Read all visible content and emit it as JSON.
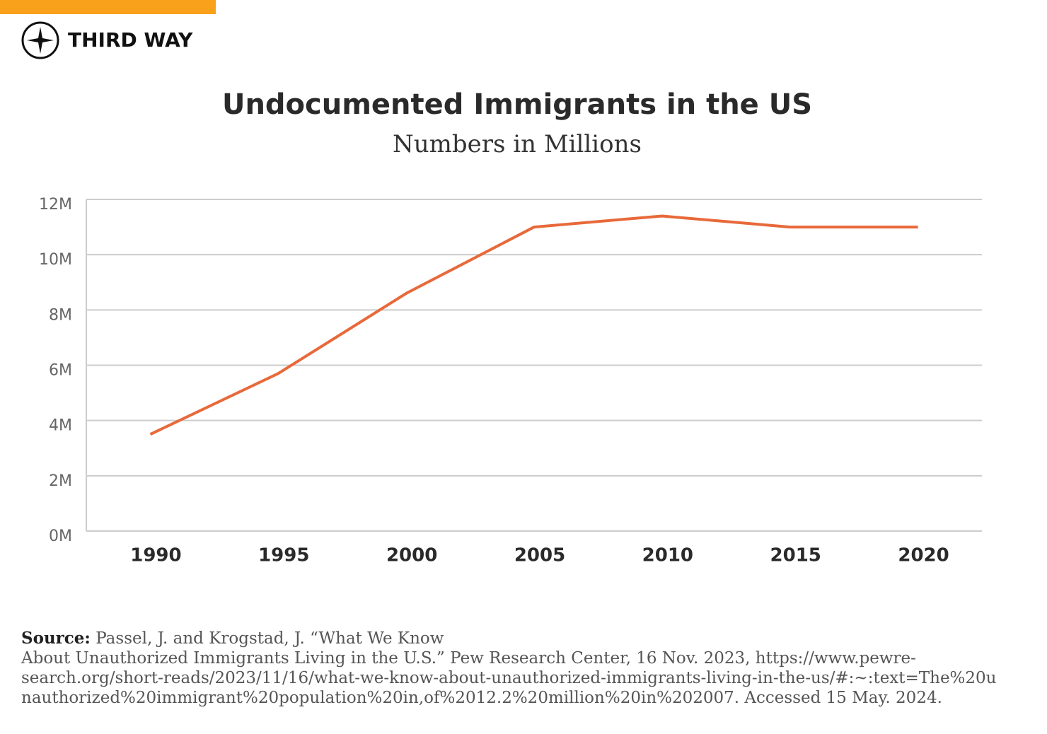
{
  "brand": "THIRD WAY",
  "chart_data": {
    "type": "line",
    "title": "Undocumented Immigrants in the US",
    "subtitle": "Numbers in Millions",
    "categories": [
      "1990",
      "1995",
      "2000",
      "2005",
      "2010",
      "2015",
      "2020"
    ],
    "values": [
      3.5,
      5.7,
      8.6,
      11.0,
      11.4,
      11.0,
      11.0
    ],
    "color": "#e8693a",
    "ylim": [
      0,
      12
    ],
    "yticks": [
      {
        "value": 0,
        "label": "0M"
      },
      {
        "value": 2,
        "label": "2M"
      },
      {
        "value": 4,
        "label": "4M"
      },
      {
        "value": 6,
        "label": "6M"
      },
      {
        "value": 8,
        "label": "8M"
      },
      {
        "value": 10,
        "label": "10M"
      },
      {
        "value": 12,
        "label": "12M"
      }
    ],
    "grid": true
  },
  "source": {
    "label": "Source:",
    "lines": [
      "Passel, J. and Krogstad, J. “What We Know",
      "About Unauthorized Immigrants Living in the U.S.” Pew Research Center, 16 Nov. 2023, https://www.pewre-",
      "search.org/short-reads/2023/11/16/what-we-know-about-unauthorized-immigrants-living-in-the-us/#:~:text=The%20u",
      "nauthorized%20immigrant%20population%20in,of%2012.2%20million%20in%202007. Accessed 15 May. 2024."
    ]
  }
}
